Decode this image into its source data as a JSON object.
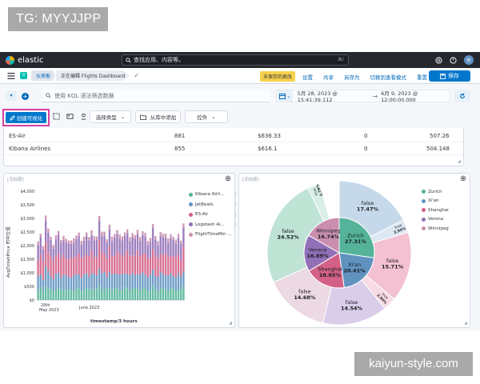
{
  "overlay": {
    "top_tag": "TG: MYYJJPP",
    "bottom_tag": "kaiyun-style.com"
  },
  "topnav": {
    "logo_text": "elastic",
    "search_placeholder": "查找应用、内容等。",
    "search_shortcut": "⌘/",
    "icons": [
      "help-icon",
      "newsfeed-icon",
      "user-avatar"
    ],
    "avatar_letter": "e"
  },
  "nav": {
    "space_badge": "D",
    "breadcrumbs": [
      "仪表板",
      "正在编辑 Flights Dashboard"
    ],
    "unsaved_badge": "未保存的更改",
    "links": [
      "设置",
      "共享",
      "另存为",
      "切换到查看模式",
      "重置"
    ],
    "save_label": "保存"
  },
  "querybar": {
    "kql_placeholder": "使用 KQL 语法筛选数据",
    "date_start": "5月 28, 2023 @ 15:41:39.112",
    "date_end": "6月 9, 2023 @ 12:00:00.000"
  },
  "toolbar": {
    "create_vis_label": "创建可视化",
    "select_type_label": "选择类型",
    "add_from_library_label": "从库中添加",
    "controls_label": "控件"
  },
  "table_panel": {
    "rows": [
      {
        "name": "ES-Air",
        "count": "881",
        "price": "$636.33",
        "zero": "0",
        "last": "507.26"
      },
      {
        "name": "Kibana Airlines",
        "count": "855",
        "price": "$616.1",
        "zero": "0",
        "last": "504.148"
      }
    ]
  },
  "bar_panel": {
    "title": "[无标题]",
    "legend": [
      "Kibana Airli...",
      "JetBeats",
      "ES-Air",
      "Logstash Ai...",
      "FlightTimeMin ..."
    ],
    "colors": {
      "kibana": "#54b399",
      "jetbeats": "#6092c0",
      "esair": "#d36086",
      "logstash": "#9170b8",
      "ftm": "#ca8eae"
    },
    "y_ticks": [
      "$4,000",
      "$3,500",
      "$3,000",
      "$2,500",
      "$2,000",
      "$1,500",
      "$1,000",
      "$500",
      "$0"
    ],
    "x_ticks": [
      "29th\nMay 2023",
      "June 2023"
    ],
    "x_label": "timestamp/3 hours",
    "y_label": "AvgTicketPrice 的中位值"
  },
  "chart_data": {
    "type": "bar",
    "title": "[无标题]",
    "xlabel": "timestamp/3 hours",
    "ylabel": "AvgTicketPrice 的中位值",
    "ylim": [
      0,
      4000
    ],
    "series_names": [
      "Kibana Airli...",
      "JetBeats",
      "ES-Air",
      "Logstash Ai...",
      "FlightTimeMin ..."
    ],
    "stack_totals_approx": [
      2150,
      2400,
      2000,
      3150,
      2600,
      2300,
      2050,
      2400,
      2500,
      2200,
      2400,
      2250,
      2150,
      2200,
      2300,
      2350,
      2450,
      2200,
      2350,
      2450,
      2300,
      2600,
      2350,
      2300,
      3100,
      2550,
      2500,
      2200,
      2800,
      2350,
      2400,
      2550,
      2450,
      2350,
      2450,
      2600,
      2350,
      2450,
      2350,
      2600,
      2350,
      2500,
      2450,
      2200,
      2300,
      2750,
      2350,
      2200,
      2500,
      2400,
      2450,
      2300,
      2400,
      2300,
      2250,
      2450,
      2150,
      2800
    ]
  },
  "pie_panel": {
    "title": "[无标题]",
    "legend": [
      "Zurich",
      "Xi'an",
      "Shanghai",
      "Verona",
      "Winnipeg"
    ],
    "legend_colors": [
      "#54b399",
      "#6092c0",
      "#d36086",
      "#9170b8",
      "#ca8eae"
    ],
    "inner": [
      {
        "label": "Zurich",
        "pct": "27.31%",
        "value": 27.31
      },
      {
        "label": "Xi'an",
        "pct": "20.41%",
        "value": 20.41
      },
      {
        "label": "Shanghai",
        "pct": "18.65%",
        "value": 18.65
      },
      {
        "label": "Verona",
        "pct": "16.89%",
        "value": 16.89
      },
      {
        "label": "Winnipeg",
        "pct": "16.74%",
        "value": 16.74
      }
    ],
    "outer": [
      {
        "label": "false",
        "pct": "17.47%",
        "value": 17.47
      },
      {
        "label": "true",
        "pct": "2.94%",
        "value": 2.94
      },
      {
        "label": "false",
        "pct": "15.71%",
        "value": 15.71
      },
      {
        "label": "true",
        "pct": "2.94%",
        "value": 2.94
      },
      {
        "label": "false",
        "pct": "14.54%",
        "value": 14.54
      },
      {
        "label": "false",
        "pct": "14.68%",
        "value": 14.68
      },
      {
        "label": "false",
        "pct": "24.52%",
        "value": 24.52
      },
      {
        "label": "true",
        "pct": "2.79%",
        "value": 2.79
      }
    ]
  }
}
